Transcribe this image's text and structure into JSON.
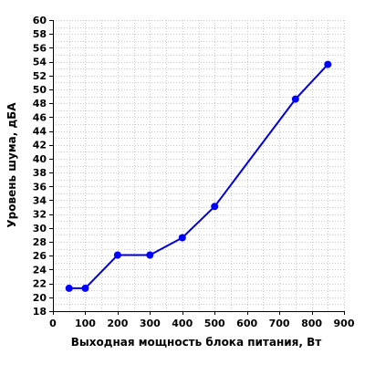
{
  "chart_data": {
    "type": "line",
    "title": "",
    "xlabel": "Выходная мощность блока питания, Вт",
    "ylabel": "Уровень шума, дБА",
    "xlim": [
      0,
      900
    ],
    "ylim": [
      18,
      60
    ],
    "x_ticks": [
      0,
      100,
      200,
      300,
      400,
      500,
      600,
      700,
      800,
      900
    ],
    "y_ticks": [
      18,
      20,
      22,
      24,
      26,
      28,
      30,
      32,
      34,
      36,
      38,
      40,
      42,
      44,
      46,
      48,
      50,
      52,
      54,
      56,
      58,
      60
    ],
    "x_minor_step": 50,
    "y_minor_step": 1,
    "grid": true,
    "legend": "none",
    "line_color": "#0000dd",
    "marker_color": "#0000ff",
    "grid_color": "#c8c8c8",
    "series": [
      {
        "x": [
          50,
          100,
          200,
          300,
          400,
          500,
          750,
          850
        ],
        "y": [
          21.3,
          21.3,
          26.1,
          26.1,
          28.6,
          33.1,
          48.6,
          53.6
        ]
      }
    ]
  }
}
